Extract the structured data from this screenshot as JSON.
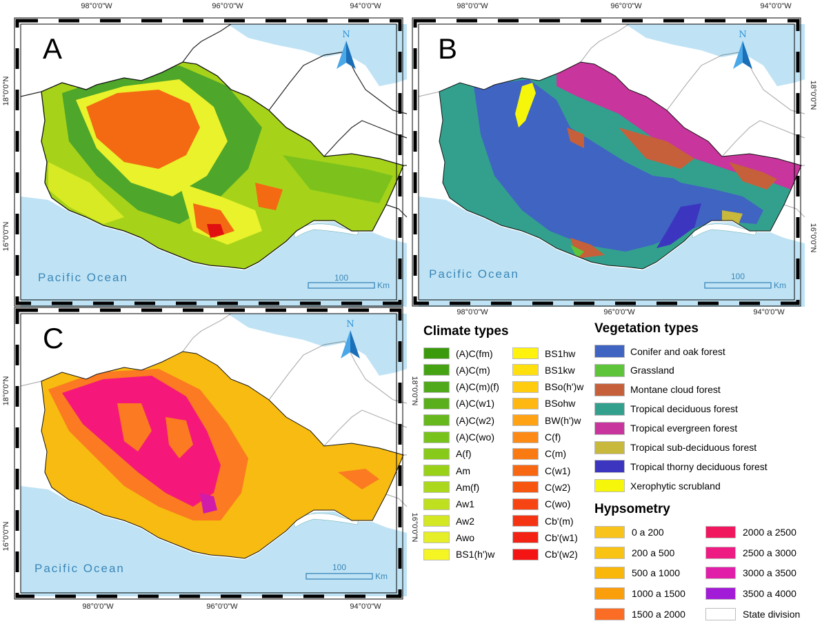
{
  "panels": [
    {
      "letter": "A"
    },
    {
      "letter": "B"
    },
    {
      "letter": "C"
    }
  ],
  "ocean_label": "Pacific Ocean",
  "north_label": "N",
  "scale": {
    "value": "100",
    "unit": "Km"
  },
  "coords": {
    "lon": [
      "98°0'0\"W",
      "96°0'0\"W",
      "94°0'0\"W"
    ],
    "lat": [
      "18°0'0\"N",
      "16°0'0\"N"
    ]
  },
  "colors": {
    "sea": "#bfe3f5",
    "climate_base": "#a6d31a",
    "climate_hot": "#f36a12",
    "climate_yellow": "#e9f22b",
    "climate_green": "#4ea62a",
    "conifer": "#3f64c2",
    "trop_decid": "#33a08e",
    "evergreen": "#c8359c",
    "hyp_low": "#f7bb11",
    "hyp_high": "#e8187a"
  },
  "climate_legend": {
    "title": "Climate types",
    "col1": [
      {
        "label": "(A)C(fm)",
        "color": "#3a9a0c"
      },
      {
        "label": "(A)C(m)",
        "color": "#45a313"
      },
      {
        "label": "(A)C(m)(f)",
        "color": "#4fa91b"
      },
      {
        "label": "(A)C(w1)",
        "color": "#5aaf1c"
      },
      {
        "label": "(A)C(w2)",
        "color": "#66b81c"
      },
      {
        "label": "(A)C(wo)",
        "color": "#77c21b"
      },
      {
        "label": "A(f)",
        "color": "#88ca1a"
      },
      {
        "label": "Am",
        "color": "#99d119"
      },
      {
        "label": "Am(f)",
        "color": "#abd81c"
      },
      {
        "label": "Aw1",
        "color": "#bfe01f"
      },
      {
        "label": "Aw2",
        "color": "#d3e722"
      },
      {
        "label": "Awo",
        "color": "#e5ee26"
      },
      {
        "label": "BS1(h')w",
        "color": "#f5f524"
      }
    ],
    "col2": [
      {
        "label": "BS1hw",
        "color": "#fff20d"
      },
      {
        "label": "BS1kw",
        "color": "#ffe00e"
      },
      {
        "label": "BSo(h')w",
        "color": "#ffcc10"
      },
      {
        "label": "BSohw",
        "color": "#ffb711"
      },
      {
        "label": "BW(h')w",
        "color": "#ffa214"
      },
      {
        "label": "C(f)",
        "color": "#fc8a14"
      },
      {
        "label": "C(m)",
        "color": "#fa7a12"
      },
      {
        "label": "C(w1)",
        "color": "#f86812"
      },
      {
        "label": "C(w2)",
        "color": "#f75611"
      },
      {
        "label": "C(wo)",
        "color": "#f64512"
      },
      {
        "label": "Cb'(m)",
        "color": "#f53413"
      },
      {
        "label": "Cb'(w1)",
        "color": "#f42214"
      },
      {
        "label": "Cb'(w2)",
        "color": "#f51414"
      }
    ]
  },
  "vegetation_legend": {
    "title": "Vegetation types",
    "items": [
      {
        "label": "Conifer and oak forest",
        "color": "#3f64c2"
      },
      {
        "label": "Grassland",
        "color": "#5ec43a"
      },
      {
        "label": "Montane cloud forest",
        "color": "#c6603a"
      },
      {
        "label": "Tropical deciduous forest",
        "color": "#33a08e"
      },
      {
        "label": "Tropical evergreen forest",
        "color": "#c8359c"
      },
      {
        "label": "Tropical sub-deciduous forest",
        "color": "#c8b83c"
      },
      {
        "label": "Tropical thorny deciduous forest",
        "color": "#3c35c0"
      },
      {
        "label": "Xerophytic scrubland",
        "color": "#f6f60a"
      }
    ]
  },
  "hypsometry_legend": {
    "title": "Hypsometry",
    "col1": [
      {
        "label": "0 a 200",
        "color": "#f8c31a"
      },
      {
        "label": "200 a 500",
        "color": "#f8c312"
      },
      {
        "label": "500 a 1000",
        "color": "#f9b70c"
      },
      {
        "label": "1000 a 1500",
        "color": "#fa9e0c"
      },
      {
        "label": "1500 a 2000",
        "color": "#fb6d24"
      }
    ],
    "col2": [
      {
        "label": "2000 a 2500",
        "color": "#f0175e"
      },
      {
        "label": "2500 a 3000",
        "color": "#ee1b82"
      },
      {
        "label": "3000 a 3500",
        "color": "#e11ea8"
      },
      {
        "label": "3500 a 4000",
        "color": "#a21bd6"
      },
      {
        "label": "State division",
        "color": "#ffffff"
      }
    ]
  }
}
